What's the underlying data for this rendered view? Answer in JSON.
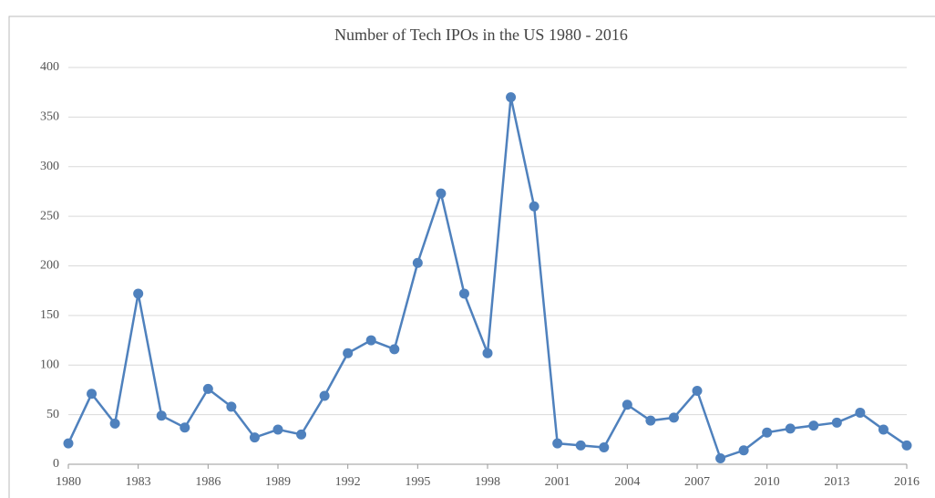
{
  "chart_data": {
    "type": "line",
    "title": "Number of Tech IPOs in the US 1980 - 2016",
    "x": [
      1980,
      1981,
      1982,
      1983,
      1984,
      1985,
      1986,
      1987,
      1988,
      1989,
      1990,
      1991,
      1992,
      1993,
      1994,
      1995,
      1996,
      1997,
      1998,
      1999,
      2000,
      2001,
      2002,
      2003,
      2004,
      2005,
      2006,
      2007,
      2008,
      2009,
      2010,
      2011,
      2012,
      2013,
      2014,
      2015,
      2016
    ],
    "series": [
      {
        "name": "Tech IPOs",
        "color": "#4f81bd",
        "values": [
          21,
          71,
          41,
          172,
          49,
          37,
          76,
          58,
          27,
          35,
          30,
          69,
          112,
          125,
          116,
          203,
          273,
          172,
          112,
          370,
          260,
          21,
          19,
          17,
          60,
          44,
          47,
          74,
          6,
          14,
          32,
          36,
          39,
          42,
          52,
          35,
          19
        ]
      }
    ],
    "xlim": [
      1980,
      2016
    ],
    "xticks": [
      1980,
      1983,
      1986,
      1989,
      1992,
      1995,
      1998,
      2001,
      2004,
      2007,
      2010,
      2013,
      2016
    ],
    "ylim": [
      0,
      400
    ],
    "yticks": [
      0,
      50,
      100,
      150,
      200,
      250,
      300,
      350,
      400
    ],
    "grid": true
  }
}
